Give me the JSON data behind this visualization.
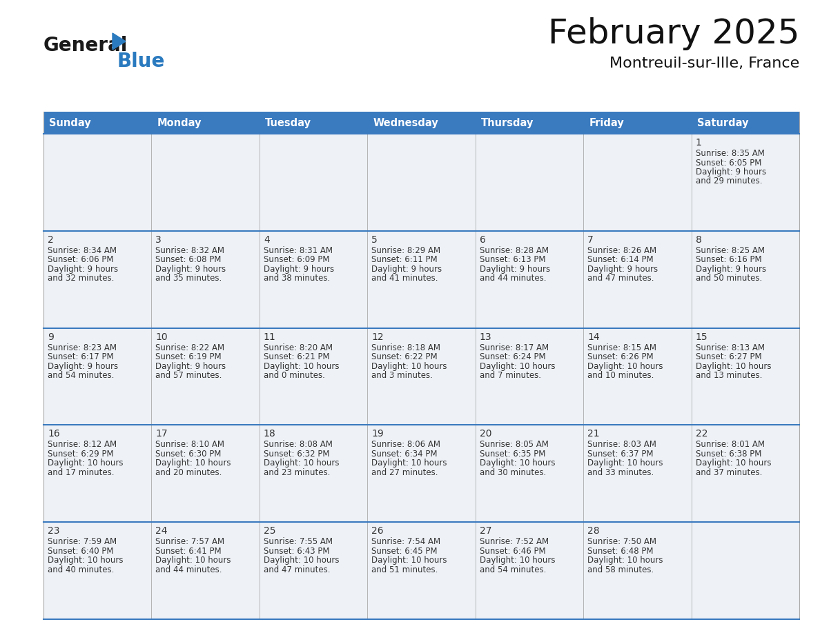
{
  "title": "February 2025",
  "subtitle": "Montreuil-sur-Ille, France",
  "header_color": "#3a7abf",
  "header_text_color": "#ffffff",
  "cell_bg_color": "#eef2f7",
  "text_color": "#333333",
  "border_color": "#3a7abf",
  "line_color": "#aaaaaa",
  "days_of_week": [
    "Sunday",
    "Monday",
    "Tuesday",
    "Wednesday",
    "Thursday",
    "Friday",
    "Saturday"
  ],
  "logo_color1": "#1a1a1a",
  "logo_color2": "#2a7abf",
  "calendar_data": [
    [
      null,
      null,
      null,
      null,
      null,
      null,
      {
        "day": "1",
        "sunrise": "8:35 AM",
        "sunset": "6:05 PM",
        "daylight": "9 hours",
        "daylight2": "and 29 minutes."
      }
    ],
    [
      {
        "day": "2",
        "sunrise": "8:34 AM",
        "sunset": "6:06 PM",
        "daylight": "9 hours",
        "daylight2": "and 32 minutes."
      },
      {
        "day": "3",
        "sunrise": "8:32 AM",
        "sunset": "6:08 PM",
        "daylight": "9 hours",
        "daylight2": "and 35 minutes."
      },
      {
        "day": "4",
        "sunrise": "8:31 AM",
        "sunset": "6:09 PM",
        "daylight": "9 hours",
        "daylight2": "and 38 minutes."
      },
      {
        "day": "5",
        "sunrise": "8:29 AM",
        "sunset": "6:11 PM",
        "daylight": "9 hours",
        "daylight2": "and 41 minutes."
      },
      {
        "day": "6",
        "sunrise": "8:28 AM",
        "sunset": "6:13 PM",
        "daylight": "9 hours",
        "daylight2": "and 44 minutes."
      },
      {
        "day": "7",
        "sunrise": "8:26 AM",
        "sunset": "6:14 PM",
        "daylight": "9 hours",
        "daylight2": "and 47 minutes."
      },
      {
        "day": "8",
        "sunrise": "8:25 AM",
        "sunset": "6:16 PM",
        "daylight": "9 hours",
        "daylight2": "and 50 minutes."
      }
    ],
    [
      {
        "day": "9",
        "sunrise": "8:23 AM",
        "sunset": "6:17 PM",
        "daylight": "9 hours",
        "daylight2": "and 54 minutes."
      },
      {
        "day": "10",
        "sunrise": "8:22 AM",
        "sunset": "6:19 PM",
        "daylight": "9 hours",
        "daylight2": "and 57 minutes."
      },
      {
        "day": "11",
        "sunrise": "8:20 AM",
        "sunset": "6:21 PM",
        "daylight": "10 hours",
        "daylight2": "and 0 minutes."
      },
      {
        "day": "12",
        "sunrise": "8:18 AM",
        "sunset": "6:22 PM",
        "daylight": "10 hours",
        "daylight2": "and 3 minutes."
      },
      {
        "day": "13",
        "sunrise": "8:17 AM",
        "sunset": "6:24 PM",
        "daylight": "10 hours",
        "daylight2": "and 7 minutes."
      },
      {
        "day": "14",
        "sunrise": "8:15 AM",
        "sunset": "6:26 PM",
        "daylight": "10 hours",
        "daylight2": "and 10 minutes."
      },
      {
        "day": "15",
        "sunrise": "8:13 AM",
        "sunset": "6:27 PM",
        "daylight": "10 hours",
        "daylight2": "and 13 minutes."
      }
    ],
    [
      {
        "day": "16",
        "sunrise": "8:12 AM",
        "sunset": "6:29 PM",
        "daylight": "10 hours",
        "daylight2": "and 17 minutes."
      },
      {
        "day": "17",
        "sunrise": "8:10 AM",
        "sunset": "6:30 PM",
        "daylight": "10 hours",
        "daylight2": "and 20 minutes."
      },
      {
        "day": "18",
        "sunrise": "8:08 AM",
        "sunset": "6:32 PM",
        "daylight": "10 hours",
        "daylight2": "and 23 minutes."
      },
      {
        "day": "19",
        "sunrise": "8:06 AM",
        "sunset": "6:34 PM",
        "daylight": "10 hours",
        "daylight2": "and 27 minutes."
      },
      {
        "day": "20",
        "sunrise": "8:05 AM",
        "sunset": "6:35 PM",
        "daylight": "10 hours",
        "daylight2": "and 30 minutes."
      },
      {
        "day": "21",
        "sunrise": "8:03 AM",
        "sunset": "6:37 PM",
        "daylight": "10 hours",
        "daylight2": "and 33 minutes."
      },
      {
        "day": "22",
        "sunrise": "8:01 AM",
        "sunset": "6:38 PM",
        "daylight": "10 hours",
        "daylight2": "and 37 minutes."
      }
    ],
    [
      {
        "day": "23",
        "sunrise": "7:59 AM",
        "sunset": "6:40 PM",
        "daylight": "10 hours",
        "daylight2": "and 40 minutes."
      },
      {
        "day": "24",
        "sunrise": "7:57 AM",
        "sunset": "6:41 PM",
        "daylight": "10 hours",
        "daylight2": "and 44 minutes."
      },
      {
        "day": "25",
        "sunrise": "7:55 AM",
        "sunset": "6:43 PM",
        "daylight": "10 hours",
        "daylight2": "and 47 minutes."
      },
      {
        "day": "26",
        "sunrise": "7:54 AM",
        "sunset": "6:45 PM",
        "daylight": "10 hours",
        "daylight2": "and 51 minutes."
      },
      {
        "day": "27",
        "sunrise": "7:52 AM",
        "sunset": "6:46 PM",
        "daylight": "10 hours",
        "daylight2": "and 54 minutes."
      },
      {
        "day": "28",
        "sunrise": "7:50 AM",
        "sunset": "6:48 PM",
        "daylight": "10 hours",
        "daylight2": "and 58 minutes."
      },
      null
    ]
  ]
}
